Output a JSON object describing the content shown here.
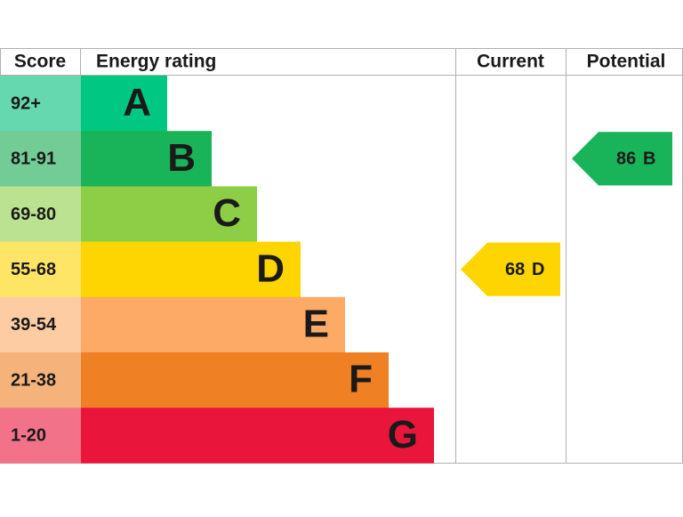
{
  "header": {
    "score": "Score",
    "energy_rating": "Energy rating",
    "current": "Current",
    "potential": "Potential"
  },
  "bands": [
    {
      "score": "92+",
      "rating": "A",
      "color": "#00c781",
      "score_color": "#66d8b0"
    },
    {
      "score": "81-91",
      "rating": "B",
      "color": "#19b459",
      "score_color": "#73cc96"
    },
    {
      "score": "69-80",
      "rating": "C",
      "color": "#8dce46",
      "score_color": "#bbe291"
    },
    {
      "score": "55-68",
      "rating": "D",
      "color": "#ffd500",
      "score_color": "#ffe566"
    },
    {
      "score": "39-54",
      "rating": "E",
      "color": "#fcaa65",
      "score_color": "#fdcca3"
    },
    {
      "score": "21-38",
      "rating": "F",
      "color": "#ef8023",
      "score_color": "#f5b37b"
    },
    {
      "score": "1-20",
      "rating": "G",
      "color": "#e9153b",
      "score_color": "#f27389"
    }
  ],
  "current": {
    "score": 68,
    "rating": "D",
    "color": "#ffd500"
  },
  "potential": {
    "score": 86,
    "rating": "B",
    "color": "#19b459"
  }
}
